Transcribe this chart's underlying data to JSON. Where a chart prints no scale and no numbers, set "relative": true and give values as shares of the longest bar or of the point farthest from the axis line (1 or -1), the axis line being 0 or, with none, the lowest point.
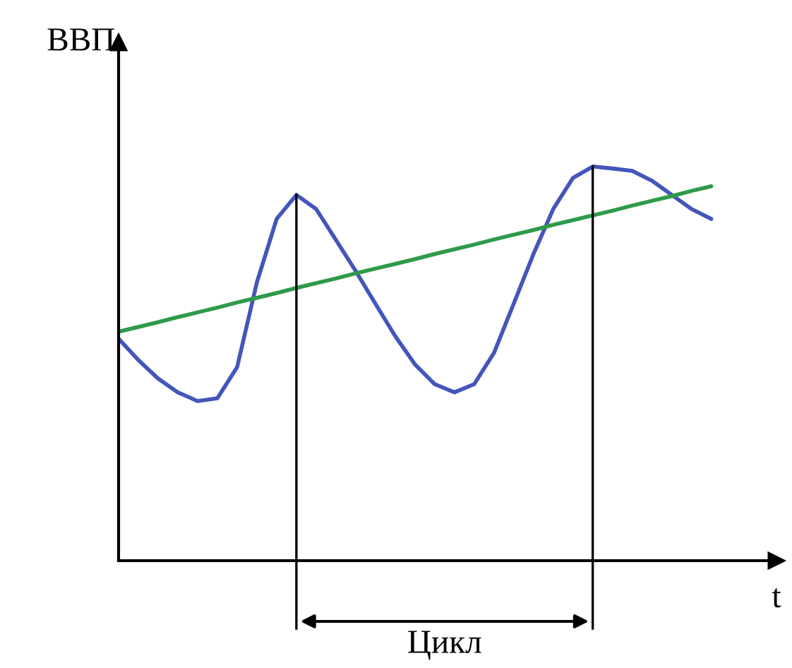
{
  "chart_data": {
    "type": "line",
    "relative": true,
    "xlabel": "t",
    "ylabel": "ВВП",
    "categories": [
      null,
      null,
      null,
      null,
      null,
      null,
      null,
      null,
      null,
      null,
      null,
      null,
      null,
      null,
      null,
      null,
      null,
      null,
      null,
      null,
      null,
      null,
      null,
      null,
      null,
      null,
      null,
      null,
      null,
      null,
      null
    ],
    "series": [
      {
        "color": "#4455bb",
        "values": [
          0.563,
          0.509,
          0.462,
          0.427,
          0.405,
          0.412,
          0.491,
          0.706,
          0.867,
          0.928,
          0.892,
          0.814,
          0.735,
          0.652,
          0.57,
          0.498,
          0.448,
          0.427,
          0.448,
          0.527,
          0.652,
          0.778,
          0.892,
          0.971,
          1.0,
          0.995,
          0.989,
          0.964,
          0.928,
          0.892,
          0.867
        ]
      },
      {
        "color": "#2e9a4a",
        "values": [
          0.581,
          0.593,
          0.605,
          0.618,
          0.63,
          0.642,
          0.655,
          0.667,
          0.679,
          0.692,
          0.704,
          0.716,
          0.729,
          0.741,
          0.753,
          0.765,
          0.778,
          0.79,
          0.802,
          0.815,
          0.827,
          0.839,
          0.852,
          0.864,
          0.876,
          0.888,
          0.901,
          0.913,
          0.925,
          0.938,
          0.95
        ]
      }
    ],
    "annotations": [
      "Цикл"
    ]
  }
}
